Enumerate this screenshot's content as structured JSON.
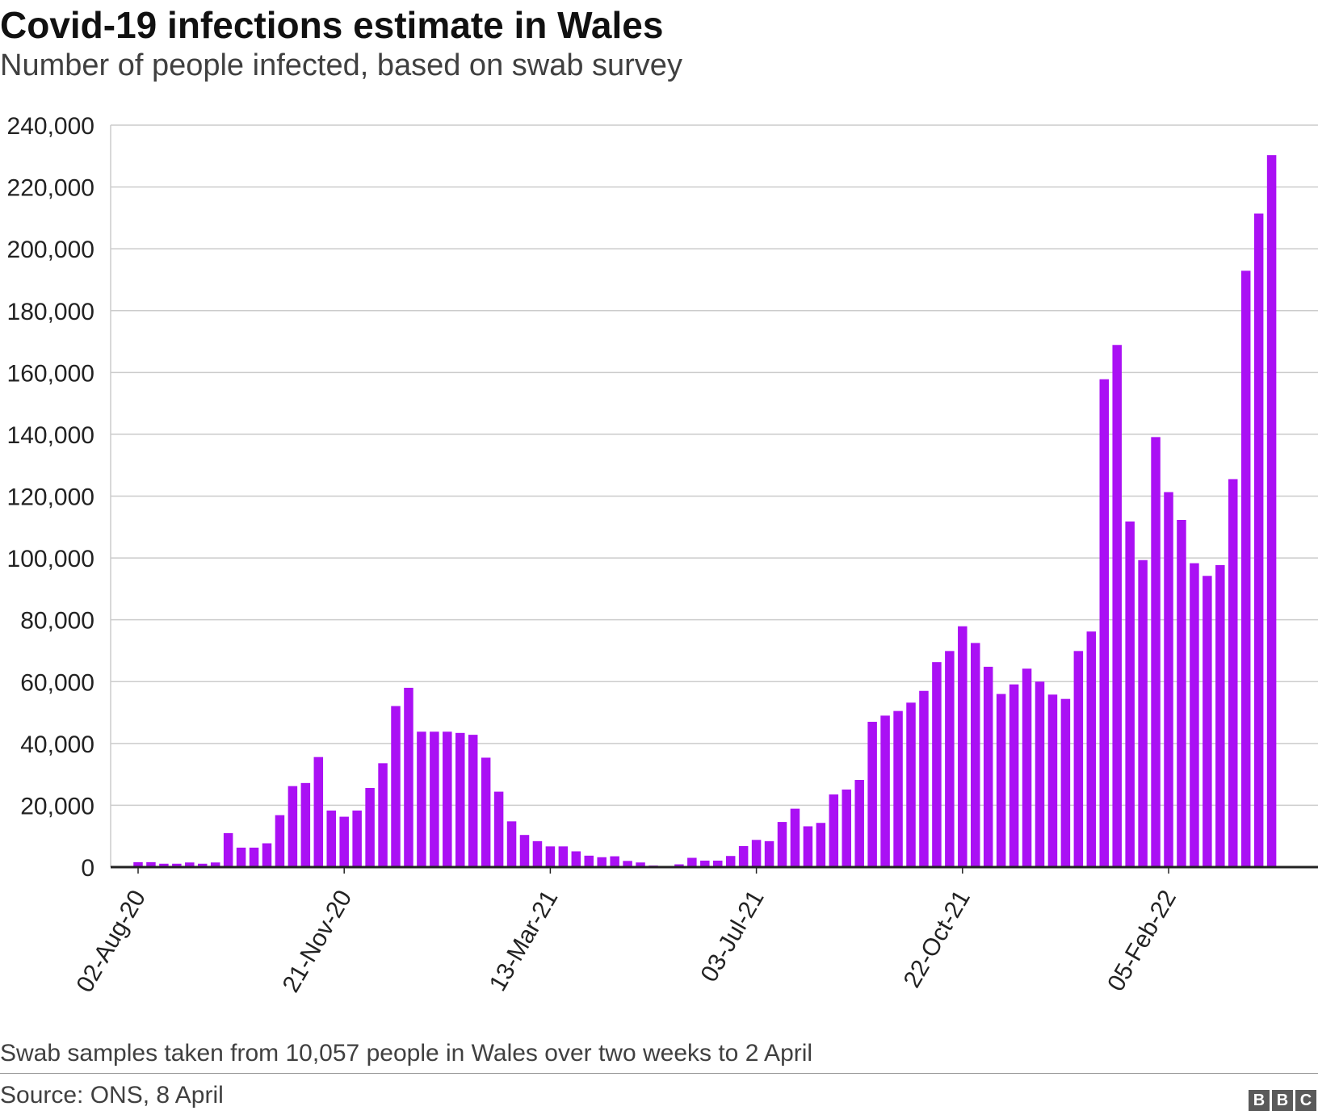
{
  "header": {
    "title": "Covid-19 infections estimate in Wales",
    "subtitle": "Number of people infected, based on swab survey"
  },
  "footer": {
    "note": "Swab samples taken from 10,057 people in Wales over two weeks to 2 April",
    "source": "Source: ONS, 8 April",
    "logo_letters": [
      "B",
      "B",
      "C"
    ]
  },
  "chart_data": {
    "type": "bar",
    "title": "Covid-19 infections estimate in Wales",
    "subtitle": "Number of people infected, based on swab survey",
    "xlabel": "",
    "ylabel": "",
    "ylim": [
      0,
      240000
    ],
    "yticks": [
      0,
      20000,
      40000,
      60000,
      80000,
      100000,
      120000,
      140000,
      160000,
      180000,
      200000,
      220000,
      240000
    ],
    "ytick_labels": [
      "0",
      "20,000",
      "40,000",
      "60,000",
      "80,000",
      "100,000",
      "120,000",
      "140,000",
      "160,000",
      "180,000",
      "200,000",
      "220,000",
      "240,000"
    ],
    "xtick_labels": [
      "02-Aug-20",
      "21-Nov-20",
      "13-Mar-21",
      "03-Jul-21",
      "22-Oct-21",
      "05-Feb-22"
    ],
    "xtick_indices": [
      0,
      16,
      32,
      48,
      64,
      80
    ],
    "bar_interval": "weekly",
    "grid": true,
    "bar_color": "#aa10f4",
    "values": [
      1600,
      1600,
      1100,
      1100,
      1500,
      1100,
      1500,
      11000,
      6300,
      6300,
      7700,
      16800,
      26200,
      27200,
      35600,
      18300,
      16300,
      18300,
      25600,
      33600,
      52100,
      58000,
      43800,
      43800,
      43800,
      43400,
      42800,
      35400,
      24400,
      14800,
      10400,
      8400,
      6700,
      6700,
      5100,
      3700,
      3200,
      3500,
      2000,
      1500,
      500,
      300,
      900,
      3000,
      2100,
      2100,
      3600,
      6800,
      8800,
      8400,
      14600,
      18900,
      13200,
      14300,
      23500,
      25100,
      28200,
      47000,
      49000,
      50500,
      53200,
      57000,
      66300,
      69900,
      77900,
      72500,
      64800,
      56000,
      59100,
      64200,
      60000,
      55800,
      54400,
      69900,
      76200,
      157800,
      168900,
      111800,
      99300,
      139100,
      121300,
      112300,
      98300,
      94200,
      97700,
      125500,
      192900,
      211400,
      230300
    ]
  }
}
